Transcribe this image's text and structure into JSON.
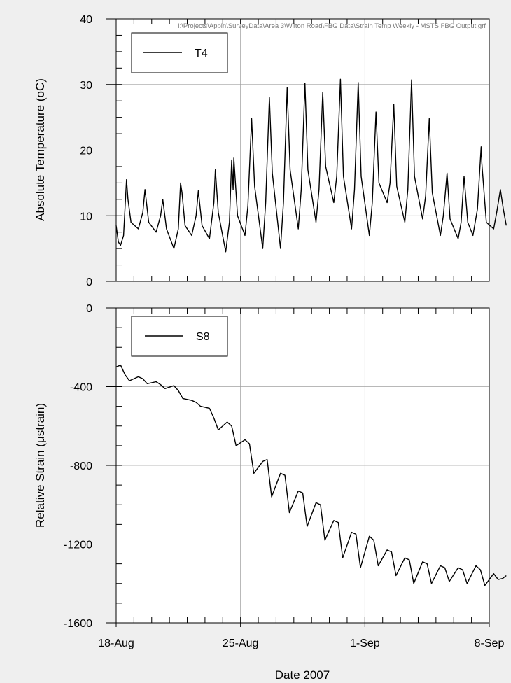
{
  "file_path": "I:\\Projects\\Appin\\SurveyData\\Area 3\\Wilton Road\\FBG Data\\Strain Temp Weekly - MSTS FBG Output.grf",
  "colors": {
    "background": "#efefef",
    "plot_bg": "#ffffff",
    "line": "#000000",
    "grid": "#a0a0a0"
  },
  "chart_data": [
    {
      "type": "line",
      "ylabel": "Absolute Temperature (oC)",
      "ylim": [
        0,
        40
      ],
      "yticks": [
        0,
        10,
        20,
        30,
        40
      ],
      "xlim": [
        "2007-08-18",
        "2007-09-08"
      ],
      "xticks": [
        "2007-08-18",
        "2007-08-25",
        "2007-09-01",
        "2007-09-08"
      ],
      "grid": true,
      "legend_position": "top-left",
      "series": [
        {
          "name": "T4",
          "points": [
            [
              "2007-08-18T00:00",
              8.5
            ],
            [
              "2007-08-18T03:00",
              6.0
            ],
            [
              "2007-08-18T06:00",
              5.5
            ],
            [
              "2007-08-18T10:00",
              7.0
            ],
            [
              "2007-08-18T14:00",
              15.5
            ],
            [
              "2007-08-18T16:00",
              12.5
            ],
            [
              "2007-08-18T20:00",
              9.0
            ],
            [
              "2007-08-19T06:00",
              8.0
            ],
            [
              "2007-08-19T12:00",
              10.5
            ],
            [
              "2007-08-19T15:00",
              14.0
            ],
            [
              "2007-08-19T20:00",
              9.0
            ],
            [
              "2007-08-20T06:00",
              7.5
            ],
            [
              "2007-08-20T12:00",
              10.0
            ],
            [
              "2007-08-20T15:00",
              12.5
            ],
            [
              "2007-08-20T20:00",
              8.0
            ],
            [
              "2007-08-21T06:00",
              5.0
            ],
            [
              "2007-08-21T12:00",
              8.0
            ],
            [
              "2007-08-21T15:00",
              15.0
            ],
            [
              "2007-08-21T17:00",
              13.5
            ],
            [
              "2007-08-21T21:00",
              8.5
            ],
            [
              "2007-08-22T06:00",
              7.0
            ],
            [
              "2007-08-22T12:00",
              10.0
            ],
            [
              "2007-08-22T15:00",
              13.8
            ],
            [
              "2007-08-22T20:00",
              8.5
            ],
            [
              "2007-08-23T06:00",
              6.5
            ],
            [
              "2007-08-23T12:00",
              12.0
            ],
            [
              "2007-08-23T14:00",
              17.0
            ],
            [
              "2007-08-23T18:00",
              10.5
            ],
            [
              "2007-08-24T04:00",
              4.5
            ],
            [
              "2007-08-24T09:00",
              9.0
            ],
            [
              "2007-08-24T12:00",
              18.5
            ],
            [
              "2007-08-24T14:00",
              14.0
            ],
            [
              "2007-08-24T15:00",
              18.8
            ],
            [
              "2007-08-24T20:00",
              10.0
            ],
            [
              "2007-08-25T06:00",
              7.0
            ],
            [
              "2007-08-25T10:00",
              11.5
            ],
            [
              "2007-08-25T15:00",
              24.8
            ],
            [
              "2007-08-25T19:00",
              14.5
            ],
            [
              "2007-08-26T06:00",
              5.0
            ],
            [
              "2007-08-26T10:00",
              12.0
            ],
            [
              "2007-08-26T15:00",
              28.0
            ],
            [
              "2007-08-26T19:00",
              16.5
            ],
            [
              "2007-08-27T06:00",
              5.0
            ],
            [
              "2007-08-27T10:00",
              12.0
            ],
            [
              "2007-08-27T15:00",
              29.5
            ],
            [
              "2007-08-27T19:00",
              17.0
            ],
            [
              "2007-08-28T06:00",
              8.0
            ],
            [
              "2007-08-28T10:00",
              14.0
            ],
            [
              "2007-08-28T15:00",
              30.2
            ],
            [
              "2007-08-28T19:00",
              17.0
            ],
            [
              "2007-08-29T06:00",
              9.0
            ],
            [
              "2007-08-29T10:00",
              14.0
            ],
            [
              "2007-08-29T15:00",
              28.8
            ],
            [
              "2007-08-29T19:00",
              17.5
            ],
            [
              "2007-08-30T06:00",
              12.0
            ],
            [
              "2007-08-30T10:00",
              16.0
            ],
            [
              "2007-08-30T15:00",
              30.8
            ],
            [
              "2007-08-30T19:00",
              16.0
            ],
            [
              "2007-08-31T06:00",
              8.0
            ],
            [
              "2007-08-31T10:00",
              14.0
            ],
            [
              "2007-08-31T15:00",
              30.3
            ],
            [
              "2007-08-31T19:00",
              16.0
            ],
            [
              "2007-09-01T06:00",
              7.0
            ],
            [
              "2007-09-01T10:00",
              12.0
            ],
            [
              "2007-09-01T15:00",
              25.8
            ],
            [
              "2007-09-01T19:00",
              15.0
            ],
            [
              "2007-09-02T06:00",
              12.0
            ],
            [
              "2007-09-02T10:00",
              15.0
            ],
            [
              "2007-09-02T15:00",
              27.0
            ],
            [
              "2007-09-02T19:00",
              14.5
            ],
            [
              "2007-09-03T06:00",
              9.0
            ],
            [
              "2007-09-03T10:00",
              14.0
            ],
            [
              "2007-09-03T15:00",
              30.7
            ],
            [
              "2007-09-03T19:00",
              16.0
            ],
            [
              "2007-09-04T06:00",
              9.5
            ],
            [
              "2007-09-04T10:00",
              13.0
            ],
            [
              "2007-09-04T15:00",
              24.8
            ],
            [
              "2007-09-04T19:00",
              13.5
            ],
            [
              "2007-09-05T06:00",
              7.0
            ],
            [
              "2007-09-05T10:00",
              10.0
            ],
            [
              "2007-09-05T15:00",
              16.5
            ],
            [
              "2007-09-05T19:00",
              9.5
            ],
            [
              "2007-09-06T06:00",
              6.5
            ],
            [
              "2007-09-06T10:00",
              9.0
            ],
            [
              "2007-09-06T14:00",
              16.0
            ],
            [
              "2007-09-06T19:00",
              9.0
            ],
            [
              "2007-09-07T02:00",
              7.0
            ],
            [
              "2007-09-07T08:00",
              11.0
            ],
            [
              "2007-09-07T13:00",
              20.5
            ],
            [
              "2007-09-07T14:00",
              18.0
            ],
            [
              "2007-09-07T20:00",
              9.0
            ],
            [
              "2007-09-08T06:00",
              8.0
            ],
            [
              "2007-09-08T10:00",
              10.5
            ],
            [
              "2007-09-08T15:00",
              14.0
            ],
            [
              "2007-09-08T19:00",
              11.0
            ],
            [
              "2007-09-08T23:00",
              8.5
            ]
          ]
        }
      ]
    },
    {
      "type": "line",
      "ylabel": "Relative Strain (μstrain)",
      "xlabel": "Date 2007",
      "ylim": [
        -1600,
        0
      ],
      "yticks": [
        0,
        -400,
        -800,
        -1200,
        -1600
      ],
      "xlim": [
        "2007-08-18",
        "2007-09-08"
      ],
      "xticks": [
        "2007-08-18",
        "2007-08-25",
        "2007-09-01",
        "2007-09-08"
      ],
      "xtick_labels": [
        "18-Aug",
        "25-Aug",
        "1-Sep",
        "8-Sep"
      ],
      "grid": true,
      "legend_position": "top-left",
      "series": [
        {
          "name": "S8",
          "points": [
            [
              "2007-08-18T00:00",
              -300
            ],
            [
              "2007-08-18T06:00",
              -290
            ],
            [
              "2007-08-18T12:00",
              -340
            ],
            [
              "2007-08-18T18:00",
              -370
            ],
            [
              "2007-08-19T06:00",
              -350
            ],
            [
              "2007-08-19T12:00",
              -360
            ],
            [
              "2007-08-19T18:00",
              -385
            ],
            [
              "2007-08-20T06:00",
              -375
            ],
            [
              "2007-08-20T12:00",
              -390
            ],
            [
              "2007-08-20T18:00",
              -410
            ],
            [
              "2007-08-21T06:00",
              -395
            ],
            [
              "2007-08-21T12:00",
              -420
            ],
            [
              "2007-08-21T18:00",
              -460
            ],
            [
              "2007-08-22T06:00",
              -470
            ],
            [
              "2007-08-22T12:00",
              -480
            ],
            [
              "2007-08-22T18:00",
              -500
            ],
            [
              "2007-08-23T06:00",
              -510
            ],
            [
              "2007-08-23T12:00",
              -560
            ],
            [
              "2007-08-23T18:00",
              -620
            ],
            [
              "2007-08-24T06:00",
              -580
            ],
            [
              "2007-08-24T12:00",
              -600
            ],
            [
              "2007-08-24T18:00",
              -700
            ],
            [
              "2007-08-25T06:00",
              -670
            ],
            [
              "2007-08-25T12:00",
              -690
            ],
            [
              "2007-08-25T18:00",
              -840
            ],
            [
              "2007-08-26T06:00",
              -780
            ],
            [
              "2007-08-26T12:00",
              -770
            ],
            [
              "2007-08-26T18:00",
              -960
            ],
            [
              "2007-08-27T06:00",
              -840
            ],
            [
              "2007-08-27T12:00",
              -850
            ],
            [
              "2007-08-27T18:00",
              -1040
            ],
            [
              "2007-08-28T06:00",
              -930
            ],
            [
              "2007-08-28T12:00",
              -940
            ],
            [
              "2007-08-28T18:00",
              -1110
            ],
            [
              "2007-08-29T06:00",
              -990
            ],
            [
              "2007-08-29T12:00",
              -1000
            ],
            [
              "2007-08-29T18:00",
              -1180
            ],
            [
              "2007-08-30T06:00",
              -1080
            ],
            [
              "2007-08-30T12:00",
              -1090
            ],
            [
              "2007-08-30T18:00",
              -1270
            ],
            [
              "2007-08-31T06:00",
              -1140
            ],
            [
              "2007-08-31T12:00",
              -1150
            ],
            [
              "2007-08-31T18:00",
              -1320
            ],
            [
              "2007-09-01T06:00",
              -1160
            ],
            [
              "2007-09-01T12:00",
              -1180
            ],
            [
              "2007-09-01T18:00",
              -1310
            ],
            [
              "2007-09-02T06:00",
              -1230
            ],
            [
              "2007-09-02T12:00",
              -1240
            ],
            [
              "2007-09-02T18:00",
              -1360
            ],
            [
              "2007-09-03T06:00",
              -1270
            ],
            [
              "2007-09-03T12:00",
              -1280
            ],
            [
              "2007-09-03T18:00",
              -1400
            ],
            [
              "2007-09-04T06:00",
              -1290
            ],
            [
              "2007-09-04T12:00",
              -1300
            ],
            [
              "2007-09-04T18:00",
              -1400
            ],
            [
              "2007-09-05T06:00",
              -1310
            ],
            [
              "2007-09-05T12:00",
              -1320
            ],
            [
              "2007-09-05T18:00",
              -1390
            ],
            [
              "2007-09-06T06:00",
              -1320
            ],
            [
              "2007-09-06T12:00",
              -1330
            ],
            [
              "2007-09-06T18:00",
              -1400
            ],
            [
              "2007-09-07T06:00",
              -1310
            ],
            [
              "2007-09-07T12:00",
              -1330
            ],
            [
              "2007-09-07T18:00",
              -1410
            ],
            [
              "2007-09-08T06:00",
              -1350
            ],
            [
              "2007-09-08T12:00",
              -1380
            ],
            [
              "2007-09-08T18:00",
              -1375
            ],
            [
              "2007-09-08T23:00",
              -1360
            ]
          ]
        }
      ]
    }
  ]
}
